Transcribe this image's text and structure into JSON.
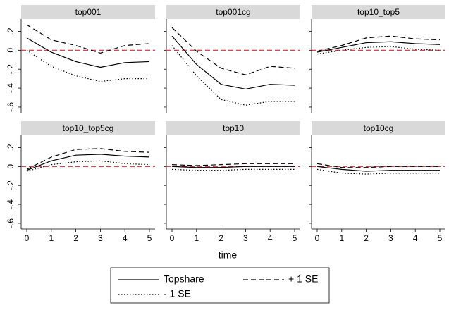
{
  "chart_data": {
    "type": "line",
    "x_label": "time",
    "x": [
      0,
      1,
      2,
      3,
      4,
      5
    ],
    "xlim": [
      -0.23,
      5.23
    ],
    "xticks": [
      0,
      1,
      2,
      3,
      4,
      5
    ],
    "ylim": [
      -0.66,
      0.33
    ],
    "yticks": [
      {
        "value": 0.2,
        "label": ".2"
      },
      0,
      {
        "value": -0.2,
        "label": "-.2"
      },
      {
        "value": -0.4,
        "label": "-.4"
      },
      {
        "value": -0.6,
        "label": "-.6"
      }
    ],
    "reference_line": 0,
    "reference_color": "#e8242a",
    "series": [
      {
        "name": "Topshare",
        "color": "#000000",
        "dash": "solid"
      },
      {
        "name": "+ 1 SE",
        "color": "#000000",
        "dash": "dashed"
      },
      {
        "name": "- 1 SE",
        "color": "#000000",
        "dash": "dotted"
      }
    ],
    "panels": [
      {
        "title": "top001",
        "values": [
          [
            0.13,
            -0.02,
            -0.12,
            -0.18,
            -0.13,
            -0.12
          ],
          [
            0.27,
            0.11,
            0.05,
            -0.03,
            0.05,
            0.07
          ],
          [
            0.0,
            -0.17,
            -0.27,
            -0.33,
            -0.3,
            -0.3
          ]
        ]
      },
      {
        "title": "top001cg",
        "values": [
          [
            0.15,
            -0.15,
            -0.36,
            -0.41,
            -0.36,
            -0.37
          ],
          [
            0.24,
            -0.01,
            -0.19,
            -0.26,
            -0.17,
            -0.19
          ],
          [
            0.05,
            -0.27,
            -0.52,
            -0.58,
            -0.54,
            -0.54
          ]
        ]
      },
      {
        "title": "top10_top5",
        "values": [
          [
            -0.02,
            0.03,
            0.08,
            0.09,
            0.07,
            0.06
          ],
          [
            -0.01,
            0.05,
            0.13,
            0.15,
            0.12,
            0.11
          ],
          [
            -0.04,
            0.0,
            0.03,
            0.04,
            0.01,
            0.0
          ]
        ]
      },
      {
        "title": "top10_top5cg",
        "values": [
          [
            -0.04,
            0.06,
            0.12,
            0.13,
            0.11,
            0.1
          ],
          [
            -0.03,
            0.1,
            0.18,
            0.19,
            0.16,
            0.15
          ],
          [
            -0.05,
            0.02,
            0.05,
            0.06,
            0.03,
            0.02
          ]
        ]
      },
      {
        "title": "top10",
        "values": [
          [
            0.0,
            -0.01,
            -0.01,
            0.0,
            0.0,
            0.0
          ],
          [
            0.02,
            0.01,
            0.02,
            0.03,
            0.03,
            0.03
          ],
          [
            -0.03,
            -0.04,
            -0.04,
            -0.03,
            -0.03,
            -0.03
          ]
        ]
      },
      {
        "title": "top10cg",
        "values": [
          [
            0.0,
            -0.03,
            -0.05,
            -0.04,
            -0.04,
            -0.04
          ],
          [
            0.03,
            -0.01,
            -0.01,
            0.0,
            0.0,
            0.0
          ],
          [
            -0.03,
            -0.07,
            -0.08,
            -0.07,
            -0.07,
            -0.07
          ]
        ]
      }
    ]
  }
}
